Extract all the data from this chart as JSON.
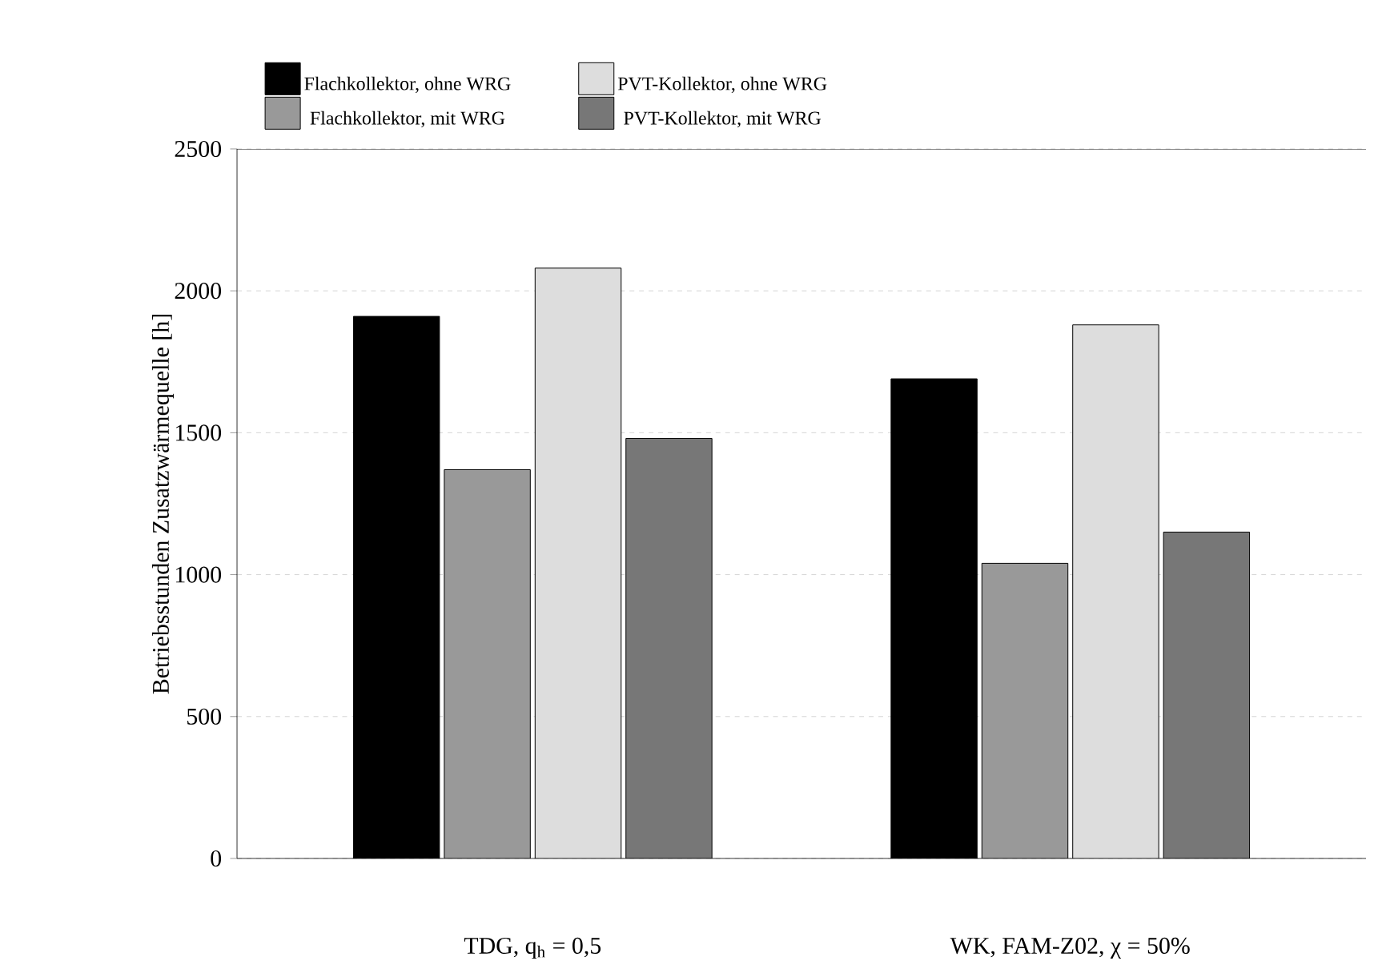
{
  "chart_data": {
    "type": "bar",
    "ylabel": "Betriebsstunden Zusatzwärmequelle [h]",
    "categories": [
      "TDG, q$_{h}$ = 0,5",
      "WK, FAM-Z02, χ = 50%"
    ],
    "series": [
      {
        "name": "Flachkollektor, ohne WRG",
        "color": "#000000",
        "values": [
          1910,
          1690
        ]
      },
      {
        "name": "Flachkollektor, mit WRG",
        "color": "#999999",
        "values": [
          1370,
          1040
        ]
      },
      {
        "name": "PVT-Kollektor, ohne WRG",
        "color": "#dddddd",
        "values": [
          2080,
          1880
        ]
      },
      {
        "name": "PVT-Kollektor, mit WRG",
        "color": "#777777",
        "values": [
          1480,
          1150
        ]
      }
    ],
    "ylim": [
      0,
      2500
    ],
    "yticks": [
      0,
      500,
      1000,
      1500,
      2000,
      2500
    ],
    "grid": "y",
    "legend": "top"
  }
}
